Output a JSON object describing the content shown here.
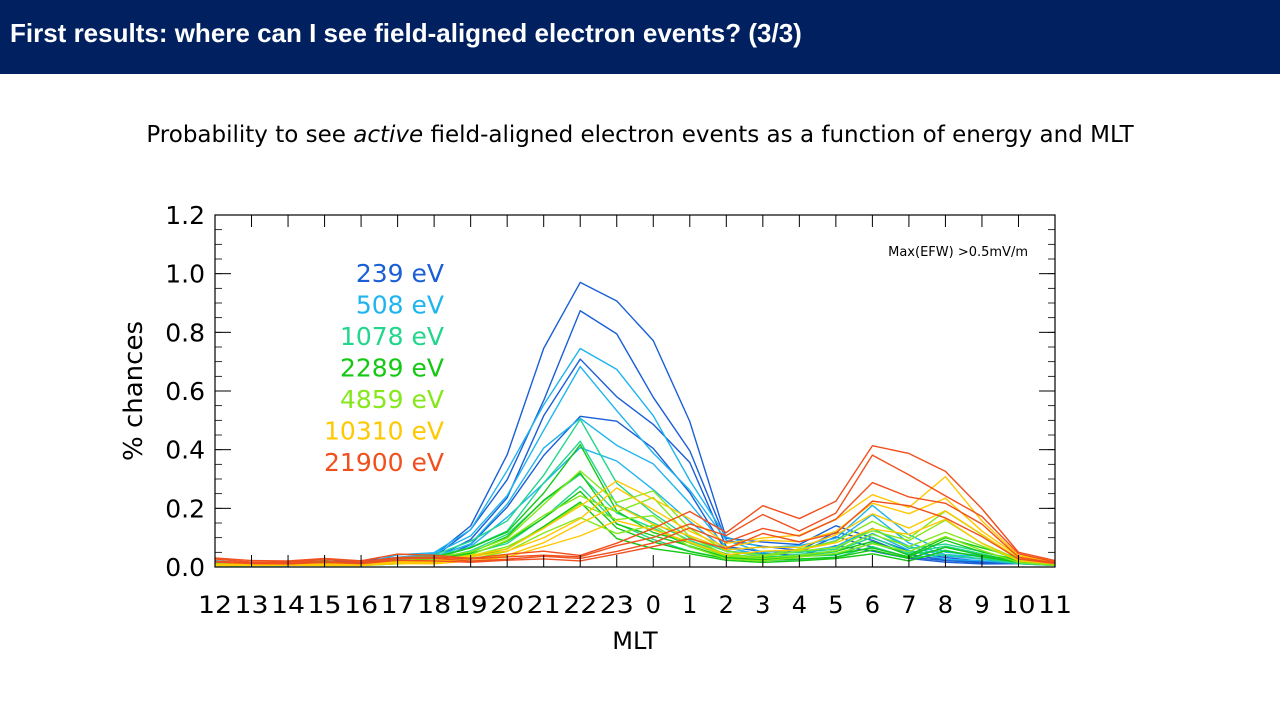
{
  "header": {
    "title": "First results: where can I see field-aligned electron events? (3/3)"
  },
  "subtitle": {
    "before": "Probability to see ",
    "emphasis": "active",
    "after": " field-aligned electron events as a function of energy and MLT"
  },
  "chart_data": {
    "type": "line",
    "title": "",
    "xlabel": "MLT",
    "ylabel": "% chances",
    "annotation": "Max(EFW) >0.5mV/m",
    "categories": [
      "12",
      "13",
      "14",
      "15",
      "16",
      "17",
      "18",
      "19",
      "20",
      "21",
      "22",
      "23",
      "0",
      "1",
      "2",
      "3",
      "4",
      "5",
      "6",
      "7",
      "8",
      "9",
      "10",
      "11"
    ],
    "ylim": [
      0,
      1.2
    ],
    "yticks": [
      "0.0",
      "0.2",
      "0.4",
      "0.6",
      "0.8",
      "1.0",
      "1.2"
    ],
    "grid": false,
    "legend_position": "top-left",
    "series": [
      {
        "name": "239 eV",
        "color": "#1a5fd6",
        "values": [
          0.02,
          0.01,
          0.01,
          0.02,
          0.02,
          0.03,
          0.04,
          0.14,
          0.35,
          0.7,
          0.99,
          0.88,
          0.7,
          0.48,
          0.1,
          0.08,
          0.07,
          0.14,
          0.1,
          0.05,
          0.03,
          0.02,
          0.02,
          0.01
        ]
      },
      {
        "name": "508 eV",
        "color": "#1fb4ee",
        "values": [
          0.02,
          0.01,
          0.02,
          0.02,
          0.01,
          0.04,
          0.05,
          0.12,
          0.3,
          0.55,
          0.75,
          0.62,
          0.48,
          0.3,
          0.1,
          0.06,
          0.07,
          0.1,
          0.2,
          0.1,
          0.05,
          0.04,
          0.02,
          0.01
        ]
      },
      {
        "name": "1078 eV",
        "color": "#22d68c",
        "values": [
          0.01,
          0.01,
          0.01,
          0.02,
          0.01,
          0.03,
          0.04,
          0.08,
          0.15,
          0.32,
          0.48,
          0.26,
          0.18,
          0.1,
          0.05,
          0.04,
          0.05,
          0.06,
          0.12,
          0.06,
          0.08,
          0.05,
          0.02,
          0.01
        ]
      },
      {
        "name": "2289 eV",
        "color": "#14c814",
        "values": [
          0.01,
          0.01,
          0.01,
          0.02,
          0.01,
          0.02,
          0.03,
          0.06,
          0.12,
          0.25,
          0.38,
          0.18,
          0.12,
          0.08,
          0.04,
          0.03,
          0.04,
          0.05,
          0.08,
          0.04,
          0.1,
          0.06,
          0.03,
          0.01
        ]
      },
      {
        "name": "4859 eV",
        "color": "#86e81c",
        "values": [
          0.01,
          0.01,
          0.01,
          0.01,
          0.01,
          0.02,
          0.03,
          0.05,
          0.1,
          0.2,
          0.3,
          0.22,
          0.26,
          0.12,
          0.05,
          0.04,
          0.06,
          0.08,
          0.15,
          0.1,
          0.18,
          0.1,
          0.03,
          0.01
        ]
      },
      {
        "name": "10310 eV",
        "color": "#ffc800",
        "values": [
          0.01,
          0.01,
          0.01,
          0.01,
          0.01,
          0.02,
          0.02,
          0.04,
          0.06,
          0.12,
          0.2,
          0.3,
          0.22,
          0.15,
          0.08,
          0.1,
          0.1,
          0.15,
          0.25,
          0.2,
          0.28,
          0.15,
          0.04,
          0.02
        ]
      },
      {
        "name": "21900 eV",
        "color": "#f0501e",
        "values": [
          0.03,
          0.02,
          0.02,
          0.03,
          0.02,
          0.04,
          0.04,
          0.03,
          0.04,
          0.05,
          0.04,
          0.08,
          0.12,
          0.18,
          0.12,
          0.2,
          0.15,
          0.22,
          0.42,
          0.36,
          0.3,
          0.2,
          0.05,
          0.02
        ]
      }
    ]
  }
}
